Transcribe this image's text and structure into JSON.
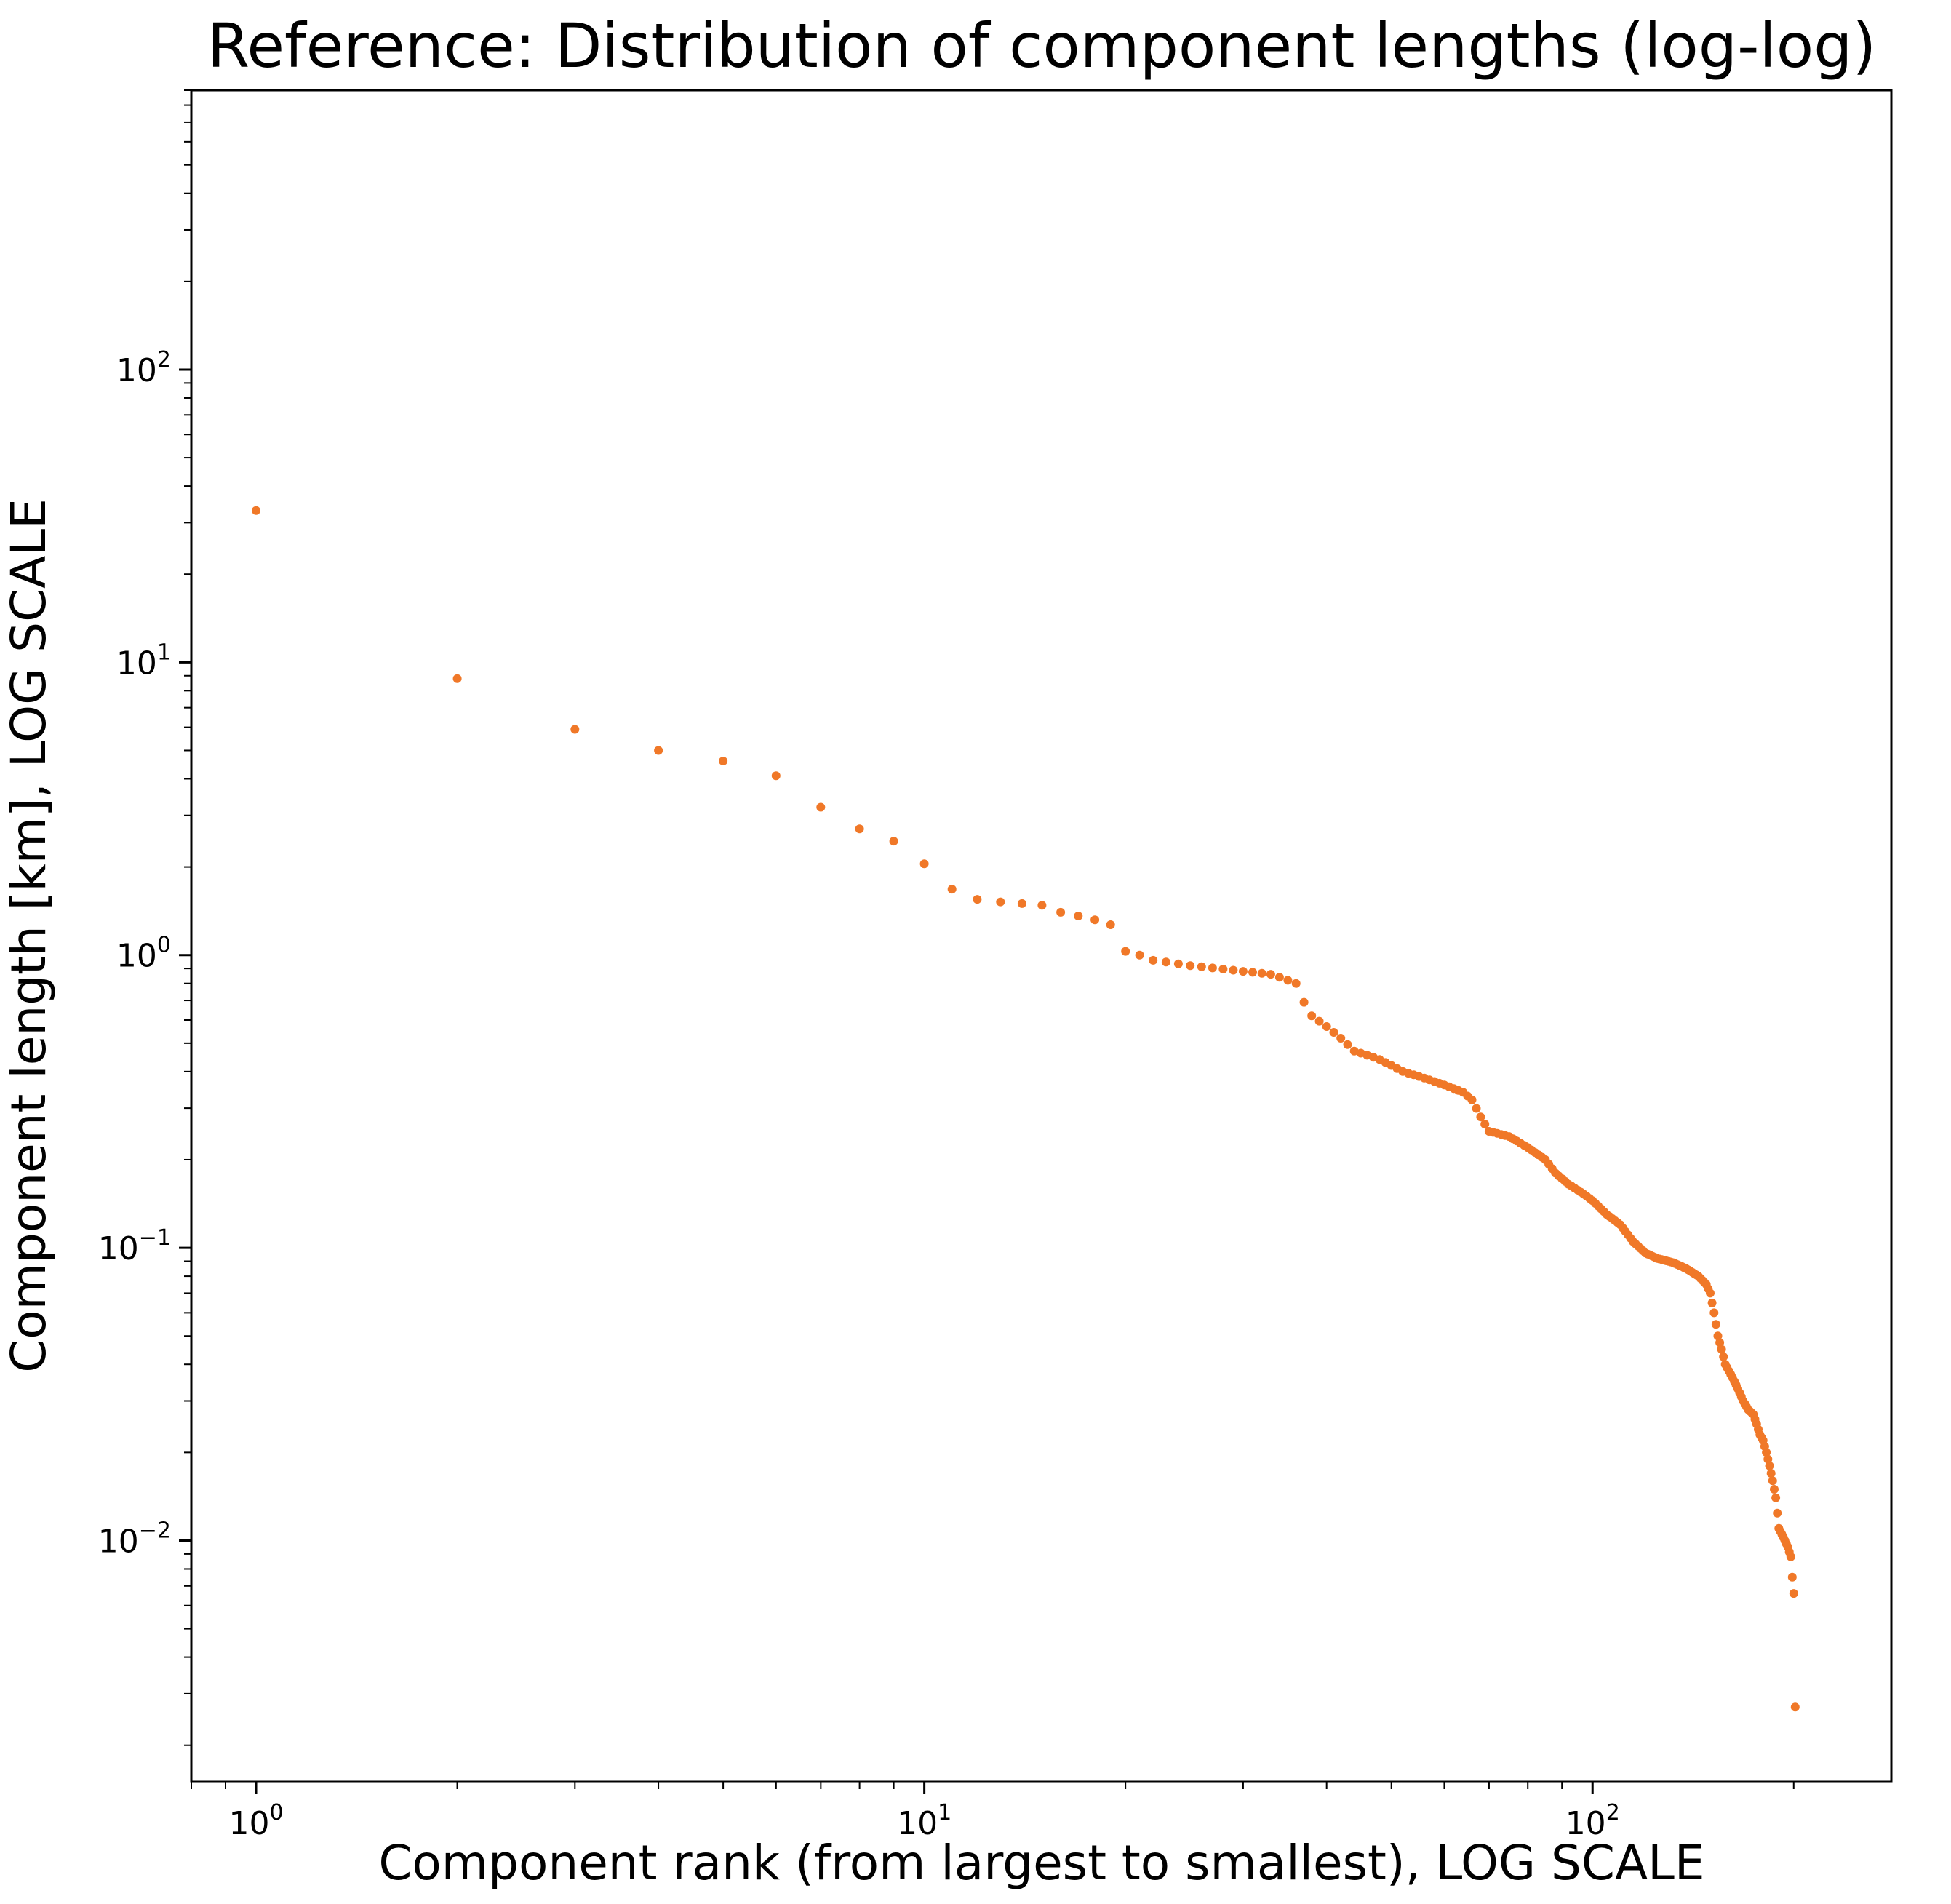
{
  "chart_data": {
    "type": "scatter",
    "title": "Reference: Distribution of component lengths (log-log)",
    "xlabel": "Component rank (from largest to smallest), LOG SCALE",
    "ylabel": "Component length [km], LOG SCALE",
    "xscale": "log",
    "yscale": "log",
    "xlim": [
      0.8,
      280
    ],
    "ylim": [
      0.0015,
      900
    ],
    "grid": false,
    "legend": "none",
    "marker_color": "#f07828",
    "x_ticks": [
      {
        "value": 1,
        "base": "10",
        "exp": "0"
      },
      {
        "value": 10,
        "base": "10",
        "exp": "1"
      },
      {
        "value": 100,
        "base": "10",
        "exp": "2"
      }
    ],
    "y_ticks": [
      {
        "value": 0.01,
        "base": "10",
        "exp": "−2"
      },
      {
        "value": 0.1,
        "base": "10",
        "exp": "−1"
      },
      {
        "value": 1,
        "base": "10",
        "exp": "0"
      },
      {
        "value": 10,
        "base": "10",
        "exp": "1"
      },
      {
        "value": 100,
        "base": "10",
        "exp": "2"
      }
    ],
    "anchors": [
      [
        1,
        33
      ],
      [
        2,
        8.8
      ],
      [
        3,
        5.9
      ],
      [
        4,
        5.0
      ],
      [
        5,
        4.6
      ],
      [
        6,
        4.1
      ],
      [
        7,
        3.2
      ],
      [
        8,
        2.7
      ],
      [
        9,
        2.45
      ],
      [
        10,
        2.05
      ],
      [
        11,
        1.68
      ],
      [
        12,
        1.55
      ],
      [
        13,
        1.52
      ],
      [
        14,
        1.5
      ],
      [
        15,
        1.48
      ],
      [
        16,
        1.4
      ],
      [
        17,
        1.36
      ],
      [
        18,
        1.32
      ],
      [
        19,
        1.27
      ],
      [
        20,
        1.03
      ],
      [
        21,
        1.0
      ],
      [
        22,
        0.96
      ],
      [
        25,
        0.92
      ],
      [
        30,
        0.88
      ],
      [
        33,
        0.86
      ],
      [
        34,
        0.84
      ],
      [
        35,
        0.82
      ],
      [
        36,
        0.8
      ],
      [
        37,
        0.69
      ],
      [
        38,
        0.62
      ],
      [
        40,
        0.57
      ],
      [
        42,
        0.52
      ],
      [
        44,
        0.47
      ],
      [
        48,
        0.44
      ],
      [
        52,
        0.4
      ],
      [
        56,
        0.38
      ],
      [
        60,
        0.36
      ],
      [
        64,
        0.34
      ],
      [
        66,
        0.32
      ],
      [
        68,
        0.28
      ],
      [
        70,
        0.25
      ],
      [
        75,
        0.24
      ],
      [
        80,
        0.22
      ],
      [
        85,
        0.2
      ],
      [
        88,
        0.18
      ],
      [
        92,
        0.165
      ],
      [
        96,
        0.155
      ],
      [
        100,
        0.145
      ],
      [
        105,
        0.13
      ],
      [
        110,
        0.12
      ],
      [
        115,
        0.105
      ],
      [
        120,
        0.096
      ],
      [
        125,
        0.092
      ],
      [
        132,
        0.089
      ],
      [
        138,
        0.085
      ],
      [
        144,
        0.08
      ],
      [
        148,
        0.075
      ],
      [
        150,
        0.07
      ],
      [
        152,
        0.06
      ],
      [
        154,
        0.05
      ],
      [
        156,
        0.045
      ],
      [
        158,
        0.04
      ],
      [
        162,
        0.036
      ],
      [
        165,
        0.033
      ],
      [
        168,
        0.03
      ],
      [
        171,
        0.028
      ],
      [
        174,
        0.027
      ],
      [
        176,
        0.025
      ],
      [
        178,
        0.023
      ],
      [
        180,
        0.022
      ],
      [
        182,
        0.02
      ],
      [
        184,
        0.018
      ],
      [
        186,
        0.016
      ],
      [
        188,
        0.014
      ],
      [
        190,
        0.011
      ],
      [
        192,
        0.0105
      ],
      [
        194,
        0.01
      ],
      [
        196,
        0.0095
      ],
      [
        198,
        0.0088
      ],
      [
        199,
        0.0075
      ],
      [
        200,
        0.0066
      ],
      [
        201,
        0.0027
      ]
    ]
  }
}
